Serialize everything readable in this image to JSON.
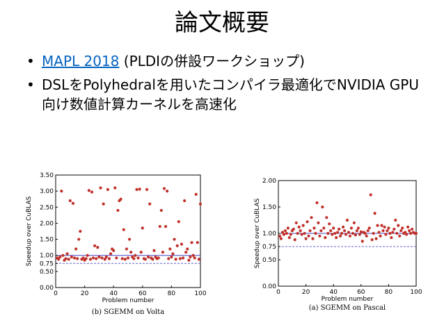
{
  "slide": {
    "title": "論文概要",
    "bullets": [
      {
        "link": "MAPL 2018",
        "text": " (PLDIの併設ワークショップ)"
      },
      {
        "text": "DSLをPolyhedralを用いたコンパイラ最適化でNVIDIA GPU向け数値計算カーネルを高速化"
      }
    ]
  },
  "chart_data": [
    {
      "type": "scatter",
      "caption": "(b) SGEMM on Volta",
      "xlabel": "Problem number",
      "ylabel": "Speedup over CuBLAS",
      "xlim": [
        0,
        100
      ],
      "ylim": [
        0,
        3.5
      ],
      "xticks": [
        "0",
        "20",
        "40",
        "60",
        "80",
        "100"
      ],
      "yticks": [
        "0.00",
        "0.50",
        "0.75",
        "1.00",
        "1.50",
        "2.00",
        "2.50",
        "3.00",
        "3.50"
      ],
      "hlines": [
        {
          "y": 1.0,
          "style": "solid",
          "color": "#4040c0"
        },
        {
          "y": 0.75,
          "style": "dashed",
          "color": "#6060d0"
        }
      ],
      "point_color": "#c0302a",
      "x": [
        1,
        2,
        3,
        4,
        5,
        6,
        7,
        8,
        9,
        10,
        11,
        12,
        13,
        14,
        15,
        16,
        17,
        18,
        19,
        20,
        21,
        22,
        23,
        24,
        25,
        26,
        27,
        28,
        29,
        30,
        31,
        32,
        33,
        34,
        35,
        36,
        37,
        38,
        39,
        40,
        41,
        42,
        43,
        44,
        45,
        46,
        47,
        48,
        49,
        50,
        51,
        52,
        53,
        54,
        55,
        56,
        57,
        58,
        59,
        60,
        61,
        62,
        63,
        64,
        65,
        66,
        67,
        68,
        69,
        70,
        71,
        72,
        73,
        74,
        75,
        76,
        77,
        78,
        79,
        80,
        81,
        82,
        83,
        84,
        85,
        86,
        87,
        88,
        89,
        90,
        91,
        92,
        93,
        94,
        95,
        96,
        97,
        98,
        99,
        100
      ],
      "y": [
        0.92,
        0.88,
        0.95,
        3.0,
        1.0,
        0.85,
        0.9,
        1.05,
        0.88,
        2.7,
        0.95,
        2.62,
        0.92,
        1.2,
        0.9,
        1.5,
        1.75,
        0.88,
        0.92,
        0.85,
        0.9,
        1.0,
        3.02,
        0.88,
        2.97,
        0.92,
        1.3,
        0.9,
        1.25,
        0.95,
        3.1,
        0.92,
        2.6,
        0.88,
        0.95,
        3.05,
        0.9,
        1.05,
        1.2,
        1.15,
        3.1,
        0.92,
        2.4,
        2.7,
        2.75,
        0.9,
        1.8,
        0.88,
        1.2,
        0.92,
        1.5,
        1.1,
        0.95,
        0.9,
        1.0,
        3.05,
        0.92,
        3.06,
        1.1,
        1.85,
        0.9,
        0.88,
        3.05,
        0.95,
        2.6,
        0.92,
        0.88,
        1.15,
        0.95,
        0.9,
        0.92,
        1.9,
        2.4,
        1.1,
        3.08,
        1.9,
        3.0,
        0.9,
        1.2,
        0.95,
        1.05,
        1.5,
        0.88,
        1.3,
        2.05,
        0.9,
        1.35,
        0.92,
        2.7,
        1.1,
        1.2,
        0.85,
        0.95,
        1.4,
        1.0,
        0.92,
        2.9,
        1.4,
        0.88,
        2.6
      ]
    },
    {
      "type": "scatter",
      "caption": "(a) SGEMM on Pascal",
      "xlabel": "Problem number",
      "ylabel": "Speedup over CuBLAS",
      "xlim": [
        0,
        100
      ],
      "ylim": [
        0,
        2.0
      ],
      "xticks": [
        "0",
        "20",
        "40",
        "60",
        "80",
        "100"
      ],
      "yticks": [
        "0.00",
        "0.50",
        "0.75",
        "1.00",
        "1.50",
        "2.00"
      ],
      "hlines": [
        {
          "y": 1.0,
          "style": "solid",
          "color": "#4040c0"
        },
        {
          "y": 0.75,
          "style": "dashed",
          "color": "#6060d0"
        }
      ],
      "point_color": "#c0302a",
      "x": [
        1,
        2,
        3,
        4,
        5,
        6,
        7,
        8,
        9,
        10,
        11,
        12,
        13,
        14,
        15,
        16,
        17,
        18,
        19,
        20,
        21,
        22,
        23,
        24,
        25,
        26,
        27,
        28,
        29,
        30,
        31,
        32,
        33,
        34,
        35,
        36,
        37,
        38,
        39,
        40,
        41,
        42,
        43,
        44,
        45,
        46,
        47,
        48,
        49,
        50,
        51,
        52,
        53,
        54,
        55,
        56,
        57,
        58,
        59,
        60,
        61,
        62,
        63,
        64,
        65,
        66,
        67,
        68,
        69,
        70,
        71,
        72,
        73,
        74,
        75,
        76,
        77,
        78,
        79,
        80,
        81,
        82,
        83,
        84,
        85,
        86,
        87,
        88,
        89,
        90,
        91,
        92,
        93,
        94,
        95,
        96,
        97,
        98,
        99,
        100
      ],
      "y": [
        0.95,
        0.9,
        1.02,
        0.98,
        1.05,
        1.0,
        1.1,
        0.92,
        0.98,
        1.05,
        1.08,
        0.88,
        1.2,
        1.0,
        1.12,
        1.05,
        0.98,
        1.15,
        1.0,
        0.9,
        1.22,
        0.95,
        1.05,
        1.3,
        0.9,
        1.1,
        1.0,
        1.58,
        1.2,
        0.95,
        1.05,
        1.5,
        1.1,
        0.92,
        1.3,
        1.0,
        1.18,
        1.05,
        0.98,
        1.1,
        1.0,
        0.92,
        1.02,
        1.08,
        0.95,
        1.0,
        1.12,
        1.05,
        0.98,
        1.25,
        1.02,
        0.95,
        1.1,
        1.0,
        1.2,
        0.97,
        1.05,
        1.1,
        0.98,
        1.03,
        0.85,
        1.02,
        1.0,
        0.95,
        1.05,
        1.1,
        1.73,
        0.88,
        1.0,
        1.38,
        0.9,
        1.15,
        1.02,
        0.95,
        1.15,
        1.05,
        1.12,
        0.98,
        1.05,
        1.1,
        1.0,
        0.92,
        1.02,
        1.08,
        1.25,
        1.0,
        1.15,
        0.95,
        1.05,
        1.1,
        1.0,
        1.02,
        0.98,
        1.12,
        1.05,
        1.0,
        1.08,
        1.02,
        1.0,
        1.0
      ]
    }
  ]
}
